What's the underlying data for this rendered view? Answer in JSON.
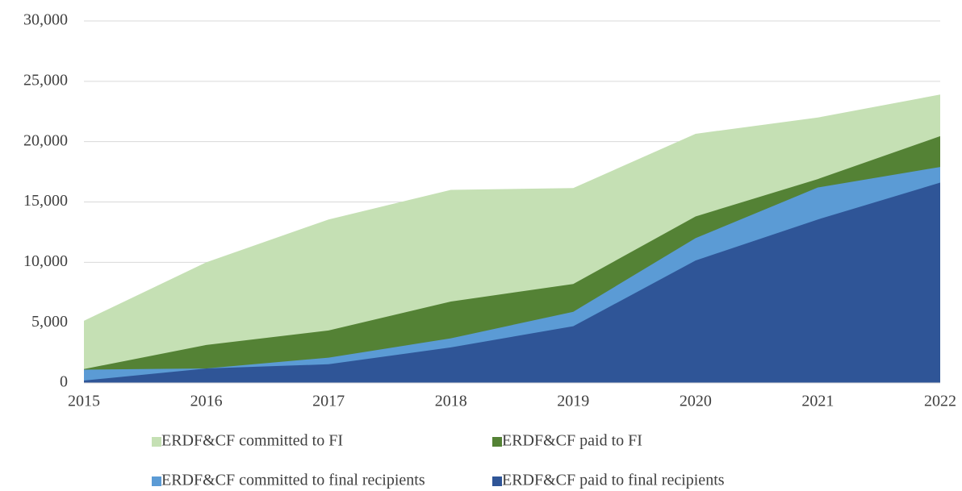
{
  "chart_data": {
    "type": "area",
    "x": [
      2015,
      2016,
      2017,
      2018,
      2019,
      2020,
      2021,
      2022
    ],
    "xlim": [
      2015,
      2022
    ],
    "xticks": [
      2015,
      2016,
      2017,
      2018,
      2019,
      2020,
      2021,
      2022
    ],
    "ylim": [
      0,
      30000
    ],
    "yticks": [
      0,
      {
        "value": 5000,
        "label": "5,000"
      },
      {
        "value": 10000,
        "label": "10,000"
      },
      {
        "value": 15000,
        "label": "15,000"
      },
      {
        "value": 20000,
        "label": "20,000"
      },
      {
        "value": 25000,
        "label": "25,000"
      },
      {
        "value": 30000,
        "label": "30,000"
      }
    ],
    "grid": true,
    "legend": "bottom",
    "series": [
      {
        "name": "ERDF&CF committed to FI",
        "color": "#c5e0b4",
        "values": [
          5150,
          10000,
          13550,
          16000,
          16150,
          20650,
          22000,
          23900
        ]
      },
      {
        "name": "ERDF&CF paid to FI",
        "color": "#548235",
        "values": [
          1150,
          3150,
          4350,
          6750,
          8200,
          13800,
          16900,
          20450
        ]
      },
      {
        "name": "ERDF&CF committed to final recipients",
        "color": "#5b9bd5",
        "values": [
          1100,
          1200,
          2100,
          3700,
          5900,
          12000,
          16200,
          17900
        ]
      },
      {
        "name": "ERDF&CF paid to final recipients",
        "color": "#2f5597",
        "values": [
          200,
          1200,
          1550,
          2950,
          4700,
          10150,
          13550,
          16600
        ]
      }
    ]
  }
}
